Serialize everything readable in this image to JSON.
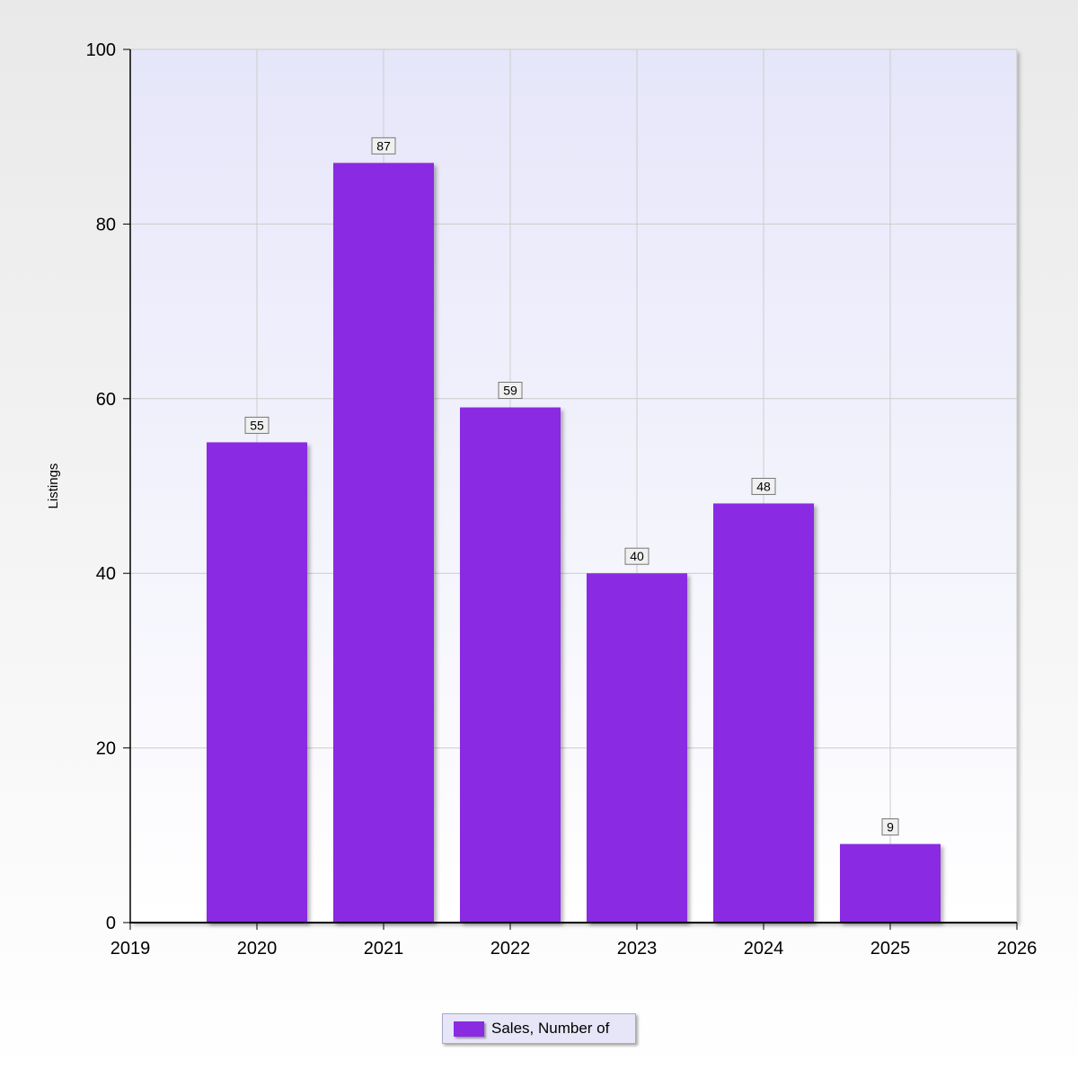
{
  "chart_data": {
    "type": "bar",
    "title": "",
    "xlabel": "",
    "ylabel": "Listings",
    "x": [
      2020,
      2021,
      2022,
      2023,
      2024,
      2025
    ],
    "series": [
      {
        "name": "Sales, Number of",
        "values": [
          55,
          87,
          59,
          40,
          48,
          9
        ],
        "color": "#8a2be2"
      }
    ],
    "xlim": [
      2019,
      2026
    ],
    "xticks": [
      "2019",
      "2020",
      "2021",
      "2022",
      "2023",
      "2024",
      "2025",
      "2026"
    ],
    "ylim": [
      0,
      100
    ],
    "yticks": [
      "0",
      "20",
      "40",
      "60",
      "80",
      "100"
    ],
    "data_labels": [
      "55",
      "87",
      "59",
      "40",
      "48",
      "9"
    ],
    "grid": true,
    "legend_position": "bottom-center",
    "plot_background_top": "#e6e6fa",
    "plot_background_bottom": "#ffffff",
    "grid_color": "#cccccc"
  }
}
